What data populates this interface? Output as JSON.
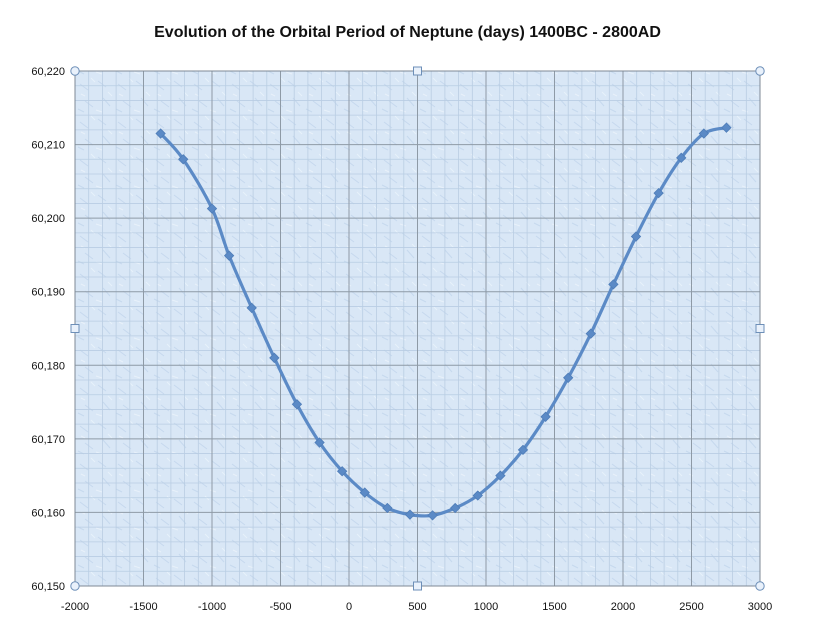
{
  "chart_data": {
    "type": "line",
    "title": "Evolution of the Orbital Period of Neptune (days) 1400BC - 2800AD",
    "xlabel": "",
    "ylabel": "",
    "xlim": [
      -2000,
      3000
    ],
    "ylim": [
      60150,
      60220
    ],
    "x_ticks": [
      -2000,
      -1500,
      -1000,
      -500,
      0,
      500,
      1000,
      1500,
      2000,
      2500,
      3000
    ],
    "y_ticks": [
      60150,
      60160,
      60170,
      60180,
      60190,
      60200,
      60210,
      60220
    ],
    "x_tick_labels": [
      "-2000",
      "-1500",
      "-1000",
      "-500",
      "0",
      "500",
      "1000",
      "1500",
      "2000",
      "2500",
      "3000"
    ],
    "y_tick_labels": [
      "60,150",
      "60,160",
      "60,170",
      "60,180",
      "60,190",
      "60,200",
      "60,210",
      "60,220"
    ],
    "grid": true,
    "legend": "none",
    "colors": {
      "series": "#5b8ac6",
      "plot_background": "#dbe9f7",
      "grid_major": "#8e9aa6",
      "grid_minor": "#b9cde3"
    },
    "series": [
      {
        "marker": "diamond",
        "x": [
          -1375,
          -1210,
          -1000,
          -875,
          -710,
          -545,
          -380,
          -215,
          -50,
          115,
          280,
          445,
          610,
          775,
          940,
          1105,
          1270,
          1435,
          1600,
          1765,
          1930,
          2095,
          2260,
          2425,
          2590,
          2755
        ],
        "y": [
          60211.5,
          60208.0,
          60201.3,
          60194.9,
          60187.8,
          60181.0,
          60174.7,
          60169.5,
          60165.6,
          60162.7,
          60160.6,
          60159.7,
          60159.6,
          60160.6,
          60162.3,
          60165.0,
          60168.5,
          60173.0,
          60178.3,
          60184.3,
          60191.0,
          60197.5,
          60203.4,
          60208.2,
          60211.5,
          60212.3
        ]
      }
    ]
  }
}
